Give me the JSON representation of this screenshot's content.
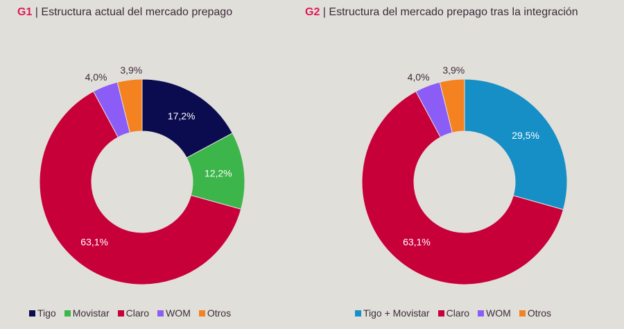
{
  "chart_data": [
    {
      "type": "pie",
      "donut": true,
      "title_tag": "G1",
      "title": "Estructura actual del mercado prepago",
      "slices": [
        {
          "label": "Tigo",
          "value": 17.2,
          "text": "17,2%",
          "color": "#0b0b4f",
          "inside": true
        },
        {
          "label": "Movistar",
          "value": 12.2,
          "text": "12,2%",
          "color": "#3cb54a",
          "inside": true
        },
        {
          "label": "Claro",
          "value": 63.1,
          "text": "63,1%",
          "color": "#c8003a",
          "inside": true
        },
        {
          "label": "WOM",
          "value": 4.0,
          "text": "4,0%",
          "color": "#8b5cf6",
          "inside": false
        },
        {
          "label": "Otros",
          "value": 3.9,
          "text": "3,9%",
          "color": "#f58220",
          "inside": false
        }
      ],
      "legend_position": "bottom"
    },
    {
      "type": "pie",
      "donut": true,
      "title_tag": "G2",
      "title": "Estructura del mercado prepago tras la integración",
      "slices": [
        {
          "label": "Tigo + Movistar",
          "value": 29.5,
          "text": "29,5%",
          "color": "#168fc6",
          "inside": true
        },
        {
          "label": "Claro",
          "value": 63.1,
          "text": "63,1%",
          "color": "#c8003a",
          "inside": true
        },
        {
          "label": "WOM",
          "value": 4.0,
          "text": "4,0%",
          "color": "#8b5cf6",
          "inside": false
        },
        {
          "label": "Otros",
          "value": 3.9,
          "text": "3,9%",
          "color": "#f58220",
          "inside": false
        }
      ],
      "legend_position": "bottom"
    }
  ]
}
